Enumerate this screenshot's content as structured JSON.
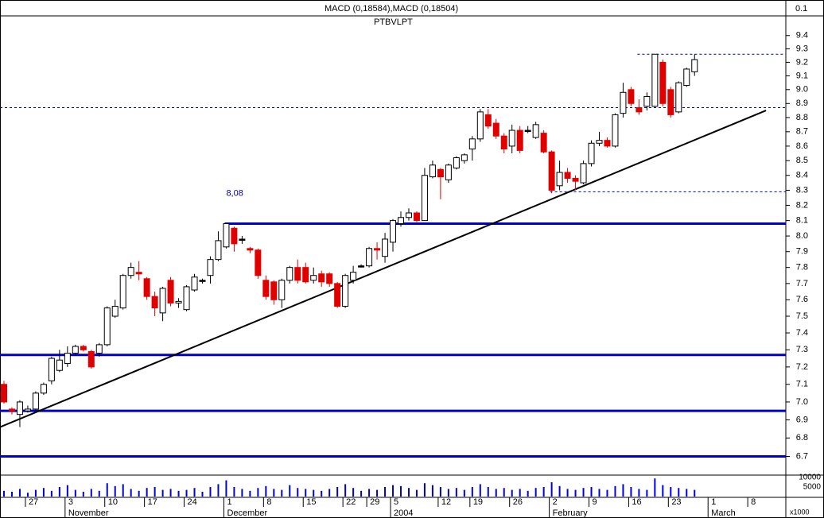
{
  "chart_data": {
    "type": "candlestick",
    "macd_label": "MACD (0,18584),MACD (0,18504)",
    "macd_tick": "0.1",
    "symbol": "PTBVLPT",
    "annotation": "8,08",
    "log_scale": true,
    "up_color": "#ffffff",
    "down_color": "#e00000",
    "doji_color": "#000000",
    "ylim": [
      6.6,
      9.55
    ],
    "yticks": [
      {
        "value": 6.7,
        "label": "6.7"
      },
      6.8,
      6.9,
      {
        "value": 7,
        "label": "7.0"
      },
      7.1,
      7.2,
      7.3,
      7.4,
      7.5,
      7.6,
      7.7,
      7.8,
      7.9,
      {
        "value": 8,
        "label": "8.0"
      },
      8.1,
      8.2,
      8.3,
      8.4,
      8.5,
      8.6,
      8.7,
      8.8,
      8.9,
      {
        "value": 9,
        "label": "9.0"
      },
      9.1,
      9.2,
      9.3,
      9.4
    ],
    "categories": [
      null,
      null,
      null,
      "27",
      null,
      null,
      null,
      null,
      "3",
      null,
      null,
      null,
      null,
      "10",
      null,
      null,
      null,
      null,
      "17",
      null,
      null,
      null,
      null,
      "24",
      null,
      null,
      null,
      null,
      "1",
      null,
      null,
      null,
      null,
      "8",
      null,
      null,
      null,
      null,
      "15",
      null,
      null,
      null,
      null,
      "22",
      null,
      null,
      "29",
      null,
      null,
      "5",
      null,
      null,
      null,
      null,
      null,
      "12",
      null,
      null,
      null,
      "19",
      null,
      null,
      null,
      null,
      "26",
      null,
      null,
      null,
      null,
      "2",
      null,
      null,
      null,
      null,
      "9",
      null,
      null,
      null,
      null,
      "16",
      null,
      null,
      null,
      null,
      "23",
      null,
      null,
      null,
      null,
      "1",
      null,
      null,
      null,
      null,
      "8",
      null,
      null,
      null,
      null
    ],
    "month_categories": [
      null,
      null,
      null,
      null,
      null,
      null,
      null,
      null,
      "November",
      null,
      null,
      null,
      null,
      null,
      null,
      null,
      null,
      null,
      null,
      null,
      null,
      null,
      null,
      null,
      null,
      null,
      null,
      null,
      "December",
      null,
      null,
      null,
      null,
      null,
      null,
      null,
      null,
      null,
      null,
      null,
      null,
      null,
      null,
      null,
      null,
      null,
      null,
      null,
      null,
      "2004",
      null,
      null,
      null,
      null,
      null,
      null,
      null,
      null,
      null,
      null,
      null,
      null,
      null,
      null,
      null,
      null,
      null,
      null,
      null,
      "February",
      null,
      null,
      null,
      null,
      null,
      null,
      null,
      null,
      null,
      null,
      null,
      null,
      null,
      null,
      null,
      null,
      null,
      null,
      null,
      "March",
      null,
      null,
      null,
      null,
      null,
      null,
      null,
      null,
      null
    ],
    "open": [
      7.1,
      6.96,
      6.93,
      6.95,
      6.96,
      7.05,
      7.12,
      7.18,
      7.22,
      7.28,
      7.32,
      7.29,
      7.28,
      7.33,
      7.5,
      7.55,
      7.75,
      7.77,
      7.73,
      7.62,
      7.52,
      7.72,
      7.58,
      7.54,
      7.66,
      7.72,
      7.75,
      7.85,
      7.93,
      8.05,
      7.98,
      7.92,
      7.91,
      7.72,
      7.71,
      7.6,
      7.72,
      7.8,
      7.8,
      7.72,
      7.76,
      7.76,
      7.7,
      7.56,
      7.72,
      7.81,
      7.81,
      7.92,
      7.87,
      7.96,
      8.08,
      8.12,
      8.15,
      8.1,
      8.39,
      8.44,
      8.37,
      8.45,
      8.5,
      8.58,
      8.65,
      8.82,
      8.76,
      8.67,
      8.6,
      8.71,
      8.71,
      8.66,
      8.69,
      8.56,
      8.33,
      8.42,
      8.38,
      8.35,
      8.48,
      8.62,
      8.64,
      8.6,
      8.83,
      9.0,
      8.87,
      8.88,
      8.88,
      9.2,
      9.0,
      8.84,
      9.03,
      9.13,
      null,
      null,
      null,
      null,
      null,
      null,
      null,
      null,
      null,
      null,
      null
    ],
    "high": [
      7.12,
      6.97,
      7.01,
      6.98,
      7.06,
      7.11,
      7.26,
      7.3,
      7.32,
      7.33,
      7.33,
      7.3,
      7.34,
      7.56,
      7.6,
      7.76,
      7.83,
      7.84,
      7.74,
      7.65,
      7.68,
      7.74,
      7.61,
      7.69,
      7.76,
      7.73,
      7.87,
      8.03,
      8.08,
      8.06,
      8.0,
      7.93,
      7.92,
      7.75,
      7.72,
      7.73,
      7.81,
      7.85,
      7.83,
      7.8,
      7.78,
      7.77,
      7.71,
      7.76,
      7.81,
      7.82,
      7.93,
      7.96,
      8.02,
      8.11,
      8.16,
      8.18,
      8.16,
      8.45,
      8.5,
      8.45,
      8.48,
      8.53,
      8.55,
      8.67,
      8.86,
      8.86,
      8.79,
      8.69,
      8.75,
      8.74,
      8.74,
      8.77,
      8.71,
      8.57,
      8.5,
      8.45,
      8.4,
      8.5,
      8.64,
      8.7,
      8.66,
      8.83,
      9.05,
      9.02,
      8.93,
      8.98,
      9.26,
      9.22,
      9.02,
      9.06,
      9.16,
      9.26,
      null,
      null,
      null,
      null,
      null,
      null,
      null,
      null,
      null,
      null,
      null
    ],
    "low": [
      6.99,
      6.93,
      6.86,
      6.94,
      6.95,
      7.04,
      7.1,
      7.17,
      7.2,
      7.27,
      7.29,
      7.19,
      7.26,
      7.32,
      7.49,
      7.54,
      7.73,
      7.72,
      7.6,
      7.5,
      7.47,
      7.56,
      7.55,
      7.53,
      7.65,
      7.7,
      7.7,
      7.84,
      7.92,
      7.9,
      7.95,
      7.89,
      7.73,
      7.6,
      7.57,
      7.55,
      7.7,
      7.7,
      7.7,
      7.7,
      7.68,
      7.68,
      7.55,
      7.55,
      7.7,
      7.8,
      7.8,
      7.85,
      7.83,
      7.9,
      8.06,
      8.1,
      8.09,
      8.1,
      8.38,
      8.24,
      8.35,
      8.44,
      8.48,
      8.5,
      8.63,
      8.72,
      8.65,
      8.55,
      8.55,
      8.55,
      8.69,
      8.65,
      8.55,
      8.28,
      8.3,
      8.35,
      8.3,
      8.34,
      8.46,
      8.6,
      8.59,
      8.59,
      8.8,
      8.88,
      8.82,
      8.85,
      8.87,
      8.88,
      8.8,
      8.83,
      9.02,
      9.1,
      null,
      null,
      null,
      null,
      null,
      null,
      null,
      null,
      null,
      null,
      null
    ],
    "close": [
      7.0,
      6.95,
      7.0,
      6.96,
      7.05,
      7.1,
      7.25,
      7.24,
      7.28,
      7.32,
      7.3,
      7.2,
      7.33,
      7.55,
      7.56,
      7.75,
      7.8,
      7.76,
      7.62,
      7.55,
      7.67,
      7.58,
      7.59,
      7.68,
      7.74,
      7.72,
      7.85,
      7.97,
      8.08,
      7.95,
      7.98,
      7.91,
      7.75,
      7.62,
      7.6,
      7.72,
      7.8,
      7.72,
      7.71,
      7.75,
      7.71,
      7.7,
      7.56,
      7.75,
      7.77,
      7.81,
      7.92,
      7.91,
      7.98,
      8.1,
      8.12,
      8.15,
      8.1,
      8.4,
      8.47,
      8.39,
      8.47,
      8.52,
      8.54,
      8.65,
      8.84,
      8.74,
      8.67,
      8.58,
      8.71,
      8.57,
      8.71,
      8.75,
      8.56,
      8.3,
      8.42,
      8.38,
      8.36,
      8.48,
      8.62,
      8.64,
      8.6,
      8.82,
      8.98,
      8.9,
      8.84,
      8.95,
      9.26,
      8.9,
      8.82,
      9.05,
      9.15,
      9.22,
      null,
      null,
      null,
      null,
      null,
      null,
      null,
      null,
      null,
      null,
      null
    ],
    "hlines": [
      {
        "value": 8.08,
        "from": 28,
        "style": "solid",
        "color": "#0000cc"
      },
      {
        "value": 7.27,
        "from": 0,
        "style": "solid",
        "color": "#0000cc"
      },
      {
        "value": 6.95,
        "from": 0,
        "style": "solid",
        "color": "#0000cc"
      },
      {
        "value": 6.7,
        "from": 0,
        "style": "solid",
        "color": "#0000cc"
      },
      {
        "value": 8.87,
        "from": 0,
        "style": "dashed",
        "color": "#0000aa"
      },
      {
        "value": 9.26,
        "from": 80,
        "style": "dashed",
        "color": "#0000aa"
      },
      {
        "value": 8.29,
        "from": 69,
        "style": "dashed",
        "color": "#0000aa"
      }
    ],
    "trendline": {
      "from": [
        0,
        6.86
      ],
      "to": [
        96,
        8.85
      ],
      "color": "#000000"
    },
    "volume": {
      "color": "#0000dd",
      "unit_label": "x1000",
      "ylim": [
        0,
        10000
      ],
      "yticks": [
        5000,
        10000
      ],
      "values": [
        3000,
        2500,
        4000,
        2000,
        3500,
        4500,
        3000,
        5000,
        6000,
        3500,
        2500,
        4000,
        3000,
        7000,
        5500,
        6500,
        4000,
        3000,
        4500,
        5000,
        3500,
        4000,
        3000,
        3500,
        4500,
        2500,
        5000,
        6500,
        8500,
        5000,
        4000,
        3000,
        4500,
        5500,
        4000,
        3500,
        6000,
        4500,
        4000,
        3500,
        3000,
        4000,
        5000,
        6500,
        4500,
        3000,
        4000,
        3500,
        5000,
        6000,
        5500,
        4500,
        3500,
        7000,
        6000,
        5000,
        4000,
        4500,
        3500,
        5000,
        6500,
        5000,
        4000,
        4500,
        3500,
        4000,
        3000,
        4500,
        5000,
        7500,
        5500,
        4000,
        3500,
        4500,
        5000,
        4000,
        3500,
        5500,
        6500,
        5000,
        4000,
        3500,
        9500,
        6000,
        5000,
        4500,
        4000,
        3500,
        null,
        null,
        null,
        null,
        null,
        null,
        null,
        null,
        null,
        null,
        null
      ]
    }
  }
}
